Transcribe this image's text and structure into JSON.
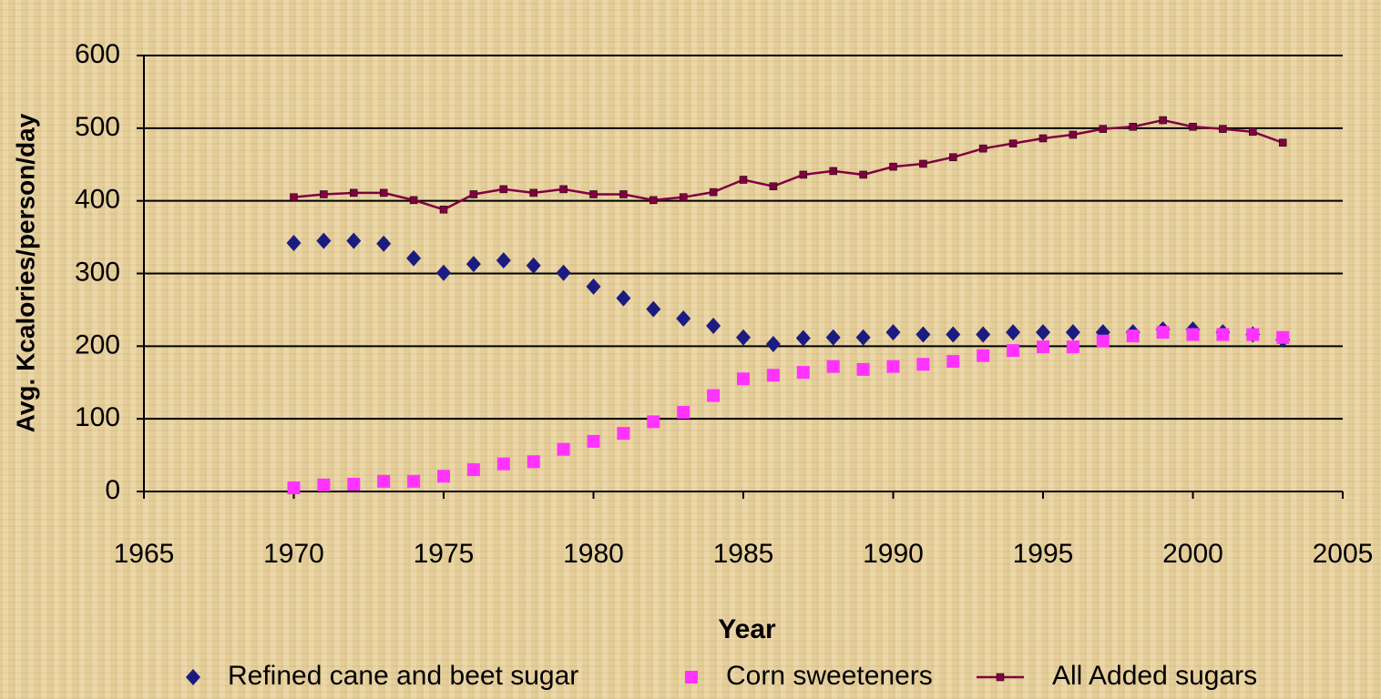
{
  "chart_data": {
    "type": "line",
    "x_label": "Year",
    "y_label": "Avg. Kcalories/person/day",
    "x": [
      1970,
      1971,
      1972,
      1973,
      1974,
      1975,
      1976,
      1977,
      1978,
      1979,
      1980,
      1981,
      1982,
      1983,
      1984,
      1985,
      1986,
      1987,
      1988,
      1989,
      1990,
      1991,
      1992,
      1993,
      1994,
      1995,
      1996,
      1997,
      1998,
      1999,
      2000,
      2001,
      2002,
      2003
    ],
    "series": [
      {
        "name": "Refined cane and beet sugar",
        "color": "#1c1c80",
        "marker": "diamond",
        "line": false,
        "values": [
          342,
          345,
          345,
          341,
          321,
          301,
          313,
          318,
          311,
          301,
          282,
          266,
          251,
          238,
          228,
          212,
          203,
          211,
          212,
          212,
          219,
          216,
          216,
          216,
          219,
          219,
          219,
          219,
          219,
          223,
          223,
          219,
          216,
          209
        ]
      },
      {
        "name": "Corn sweeteners",
        "color": "#ff33ff",
        "marker": "square",
        "line": false,
        "values": [
          5,
          9,
          10,
          14,
          14,
          21,
          30,
          38,
          41,
          58,
          69,
          80,
          96,
          109,
          132,
          155,
          160,
          164,
          172,
          168,
          172,
          175,
          179,
          187,
          194,
          199,
          199,
          207,
          214,
          219,
          216,
          216,
          216,
          212
        ]
      },
      {
        "name": "All Added sugars",
        "color": "#800040",
        "marker": "small-square",
        "line": true,
        "values": [
          405,
          409,
          411,
          411,
          401,
          388,
          409,
          416,
          411,
          416,
          409,
          409,
          401,
          405,
          412,
          429,
          420,
          436,
          441,
          436,
          447,
          451,
          460,
          472,
          479,
          486,
          491,
          499,
          502,
          511,
          502,
          499,
          495,
          480
        ]
      }
    ],
    "xlim": [
      1965,
      2005
    ],
    "xticks": [
      1965,
      1970,
      1975,
      1980,
      1985,
      1990,
      1995,
      2000,
      2005
    ],
    "ylim": [
      0,
      600
    ],
    "yticks": [
      0,
      100,
      200,
      300,
      400,
      500,
      600
    ],
    "grid": true,
    "legend": "bottom"
  }
}
